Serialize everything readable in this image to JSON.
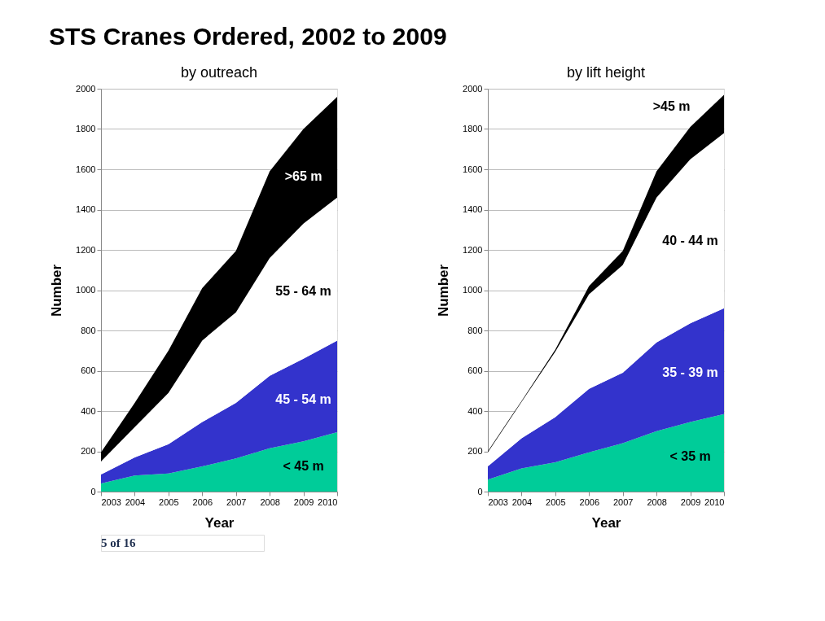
{
  "chart_data": [
    {
      "type": "area",
      "title": "STS Cranes Ordered, 2002 to 2009",
      "subtitle": "by outreach",
      "xlabel": "Year",
      "ylabel": "Number",
      "stacked": true,
      "x": [
        2003,
        2004,
        2005,
        2006,
        2007,
        2008,
        2009,
        2010
      ],
      "xlim": [
        2003,
        2010
      ],
      "xticks": [
        2003,
        2004,
        2005,
        2006,
        2007,
        2008,
        2009,
        2010
      ],
      "ylim": [
        0,
        2000
      ],
      "yticks": [
        0,
        200,
        400,
        600,
        800,
        1000,
        1200,
        1400,
        1600,
        1800,
        2000
      ],
      "grid": "y",
      "legend": false,
      "annotations": [
        "5 of 16"
      ],
      "series": [
        {
          "name": "< 45 m",
          "color": "#00cc99",
          "values": [
            40,
            80,
            90,
            125,
            165,
            215,
            250,
            295
          ]
        },
        {
          "name": "45 - 54 m",
          "color": "#3333cc",
          "values": [
            45,
            90,
            145,
            220,
            275,
            360,
            410,
            455
          ]
        },
        {
          "name": "55 - 64 m",
          "color": "#ffffff",
          "values": [
            65,
            150,
            255,
            405,
            450,
            585,
            670,
            710
          ]
        },
        {
          "name": ">65 m",
          "color": "#000000",
          "values": [
            45,
            120,
            210,
            260,
            305,
            430,
            470,
            500
          ]
        }
      ]
    },
    {
      "type": "area",
      "subtitle": "by lift height",
      "xlabel": "Year",
      "ylabel": "Number",
      "stacked": true,
      "x": [
        2003,
        2004,
        2005,
        2006,
        2007,
        2008,
        2009,
        2010
      ],
      "xlim": [
        2003,
        2010
      ],
      "xticks": [
        2003,
        2004,
        2005,
        2006,
        2007,
        2008,
        2009,
        2010
      ],
      "ylim": [
        0,
        2000
      ],
      "yticks": [
        0,
        200,
        400,
        600,
        800,
        1000,
        1200,
        1400,
        1600,
        1800,
        2000
      ],
      "grid": "y",
      "legend": false,
      "series": [
        {
          "name": "< 35 m",
          "color": "#00cc99",
          "values": [
            60,
            115,
            145,
            195,
            240,
            300,
            345,
            385
          ]
        },
        {
          "name": "35 - 39 m",
          "color": "#3333cc",
          "values": [
            65,
            150,
            225,
            315,
            350,
            440,
            490,
            525
          ]
        },
        {
          "name": "40 - 44 m",
          "color": "#ffffff",
          "values": [
            70,
            180,
            325,
            470,
            535,
            720,
            815,
            870
          ]
        },
        {
          "name": ">45 m",
          "color": "#000000",
          "values": [
            5,
            5,
            10,
            40,
            70,
            130,
            160,
            190
          ]
        }
      ]
    }
  ]
}
